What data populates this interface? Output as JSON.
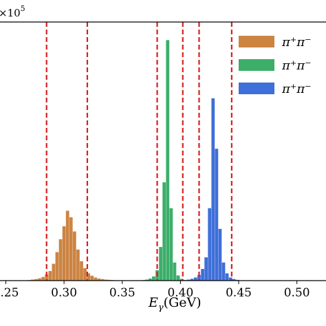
{
  "chart_data": {
    "type": "bar",
    "multiplier": "×10",
    "multiplier_exponent": "5",
    "xlabel": "E",
    "xlabel_sub": "γ",
    "xlabel_unit": "(GeV)",
    "xlim": [
      0.245,
      0.525
    ],
    "ylim": [
      0,
      1.0
    ],
    "x_ticks": [
      {
        "value": 0.25,
        "label": "0.25"
      },
      {
        "value": 0.3,
        "label": "0.30"
      },
      {
        "value": 0.35,
        "label": "0.35"
      },
      {
        "value": 0.4,
        "label": "0.40"
      },
      {
        "value": 0.45,
        "label": "0.45"
      },
      {
        "value": 0.5,
        "label": "0.50"
      }
    ],
    "cut_lines": [
      0.285,
      0.32,
      0.38,
      0.402,
      0.416,
      0.444
    ],
    "bin_width": 0.0028,
    "legend_placement": "top-right",
    "series": [
      {
        "name": "π⁺π⁻",
        "color": "#cc8443",
        "x": [
          0.27,
          0.273,
          0.276,
          0.279,
          0.282,
          0.285,
          0.288,
          0.291,
          0.294,
          0.297,
          0.3,
          0.303,
          0.306,
          0.309,
          0.312,
          0.315,
          0.318,
          0.321,
          0.324,
          0.327,
          0.33,
          0.333,
          0.336,
          0.339,
          0.342,
          0.345,
          0.348
        ],
        "values": [
          0.002,
          0.004,
          0.006,
          0.009,
          0.014,
          0.024,
          0.037,
          0.065,
          0.11,
          0.16,
          0.21,
          0.27,
          0.245,
          0.19,
          0.12,
          0.075,
          0.048,
          0.028,
          0.019,
          0.012,
          0.008,
          0.006,
          0.004,
          0.003,
          0.002,
          0.0015,
          0.001
        ]
      },
      {
        "name": "π⁺π⁻",
        "color": "#3cae6a",
        "x": [
          0.368,
          0.371,
          0.374,
          0.377,
          0.38,
          0.383,
          0.386,
          0.389,
          0.392,
          0.395,
          0.398,
          0.401,
          0.404
        ],
        "values": [
          0.002,
          0.004,
          0.008,
          0.016,
          0.04,
          0.13,
          0.38,
          0.93,
          0.28,
          0.07,
          0.02,
          0.007,
          0.002
        ]
      },
      {
        "name": "π⁺π⁻",
        "color": "#3f6fd8",
        "x": [
          0.404,
          0.407,
          0.41,
          0.413,
          0.416,
          0.419,
          0.422,
          0.425,
          0.428,
          0.431,
          0.434,
          0.437,
          0.44,
          0.443,
          0.446,
          0.449
        ],
        "values": [
          0.002,
          0.004,
          0.007,
          0.012,
          0.022,
          0.045,
          0.09,
          0.28,
          0.705,
          0.51,
          0.2,
          0.07,
          0.028,
          0.012,
          0.006,
          0.003
        ]
      }
    ]
  }
}
